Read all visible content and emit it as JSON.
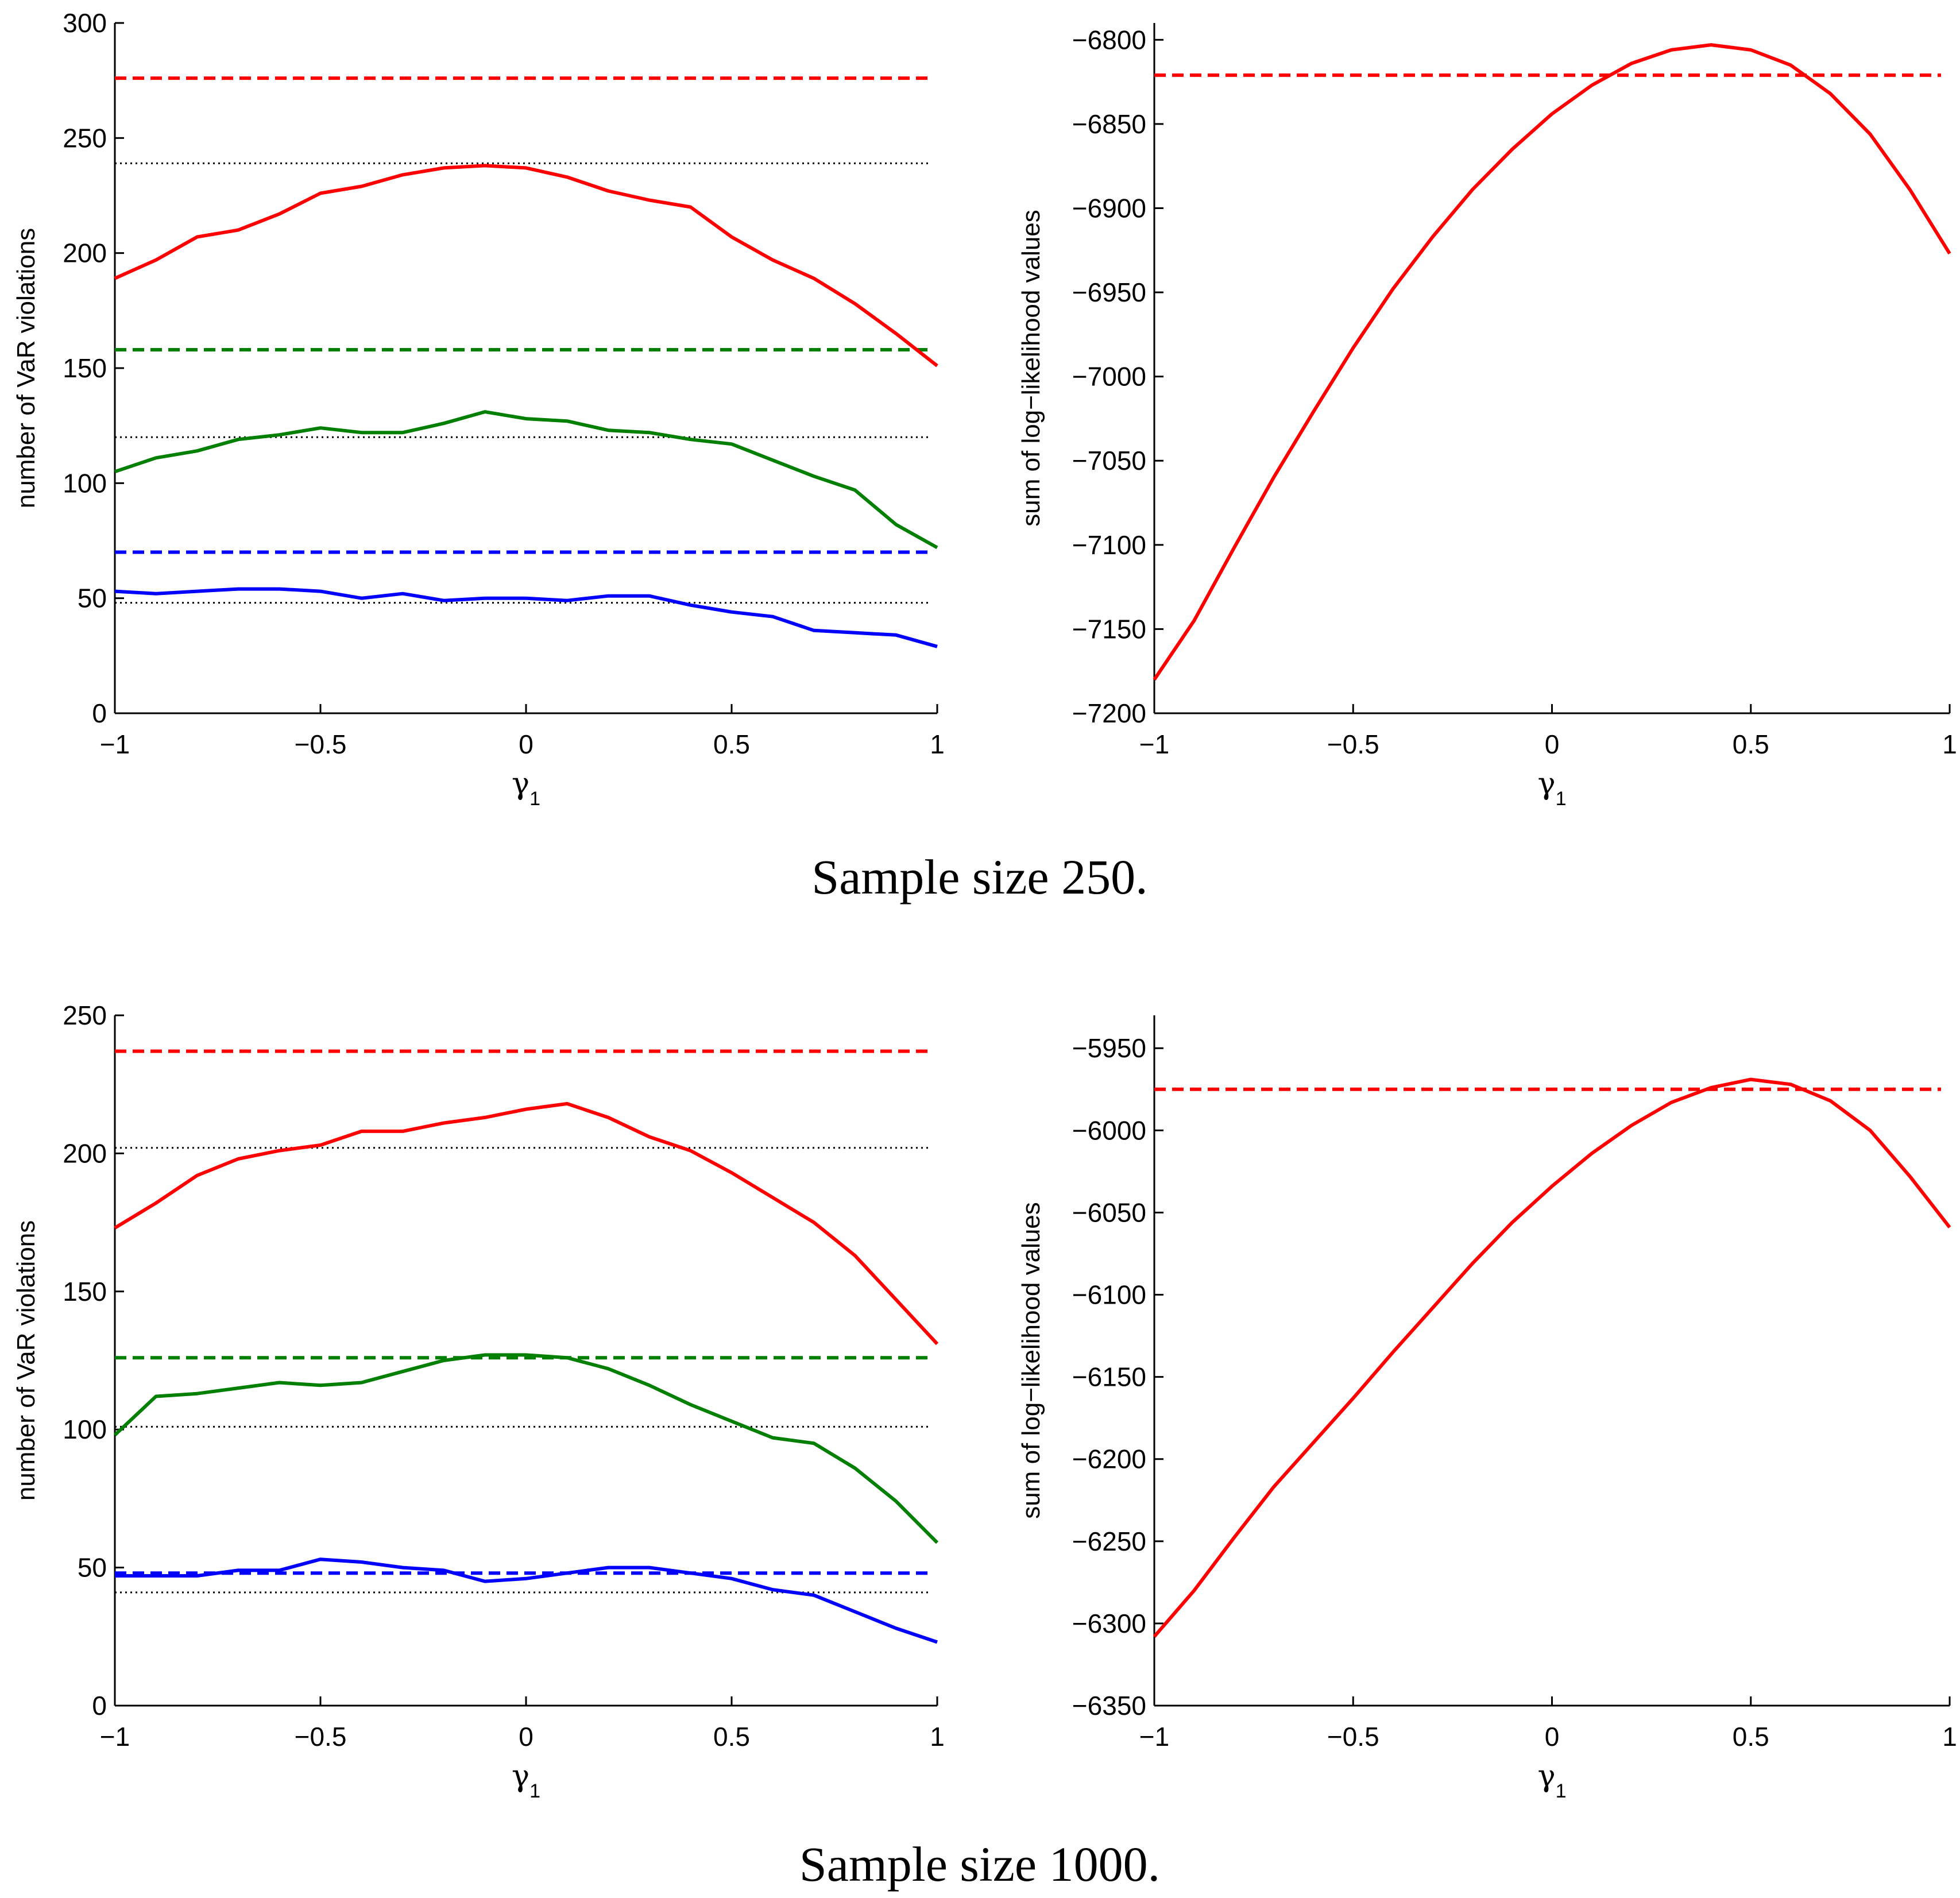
{
  "colors": {
    "red": "#ff0000",
    "green": "#007f00",
    "blue": "#0000ff",
    "ref": "#000000"
  },
  "captions": {
    "top": "Sample size 250.",
    "bottom": "Sample size 1000."
  },
  "chart_data": [
    {
      "type": "line",
      "title": "",
      "xlabel": "γ1",
      "ylabel": "number of VaR violations",
      "xlim": [
        -1,
        1
      ],
      "ylim": [
        0,
        300
      ],
      "xticks": [
        -1,
        -0.5,
        0,
        0.5,
        1
      ],
      "xtick_labels": [
        "−1",
        "−0.5",
        "0",
        "0.5",
        "1"
      ],
      "yticks": [
        0,
        50,
        100,
        150,
        200,
        250,
        300
      ],
      "ytick_labels": [
        "0",
        "50",
        "100",
        "150",
        "200",
        "250",
        "300"
      ],
      "x": [
        -1,
        -0.9,
        -0.8,
        -0.7,
        -0.6,
        -0.5,
        -0.4,
        -0.3,
        -0.2,
        -0.1,
        0,
        0.1,
        0.2,
        0.3,
        0.4,
        0.5,
        0.6,
        0.7,
        0.8,
        0.9,
        1
      ],
      "series": [
        {
          "name": "red",
          "color": "red",
          "values": [
            189,
            197,
            207,
            210,
            217,
            226,
            229,
            234,
            237,
            238,
            237,
            233,
            227,
            223,
            220,
            207,
            197,
            189,
            178,
            165,
            151
          ]
        },
        {
          "name": "green",
          "color": "green",
          "values": [
            105,
            111,
            114,
            119,
            121,
            124,
            122,
            122,
            126,
            131,
            128,
            127,
            123,
            122,
            119,
            117,
            110,
            103,
            97,
            82,
            72
          ]
        },
        {
          "name": "blue",
          "color": "blue",
          "values": [
            53,
            52,
            53,
            54,
            54,
            53,
            50,
            52,
            49,
            50,
            50,
            49,
            51,
            51,
            47,
            44,
            42,
            36,
            35,
            34,
            29
          ]
        }
      ],
      "hlines": [
        {
          "name": "red dashed",
          "y": 276,
          "style": "dashed",
          "color": "red"
        },
        {
          "name": "black dotted",
          "y": 239,
          "style": "dotted",
          "color": "ref"
        },
        {
          "name": "green dashed",
          "y": 158,
          "style": "dashed",
          "color": "green"
        },
        {
          "name": "black dotted",
          "y": 120,
          "style": "dotted",
          "color": "ref"
        },
        {
          "name": "blue dashed",
          "y": 70,
          "style": "dashed",
          "color": "blue"
        },
        {
          "name": "black dotted",
          "y": 48,
          "style": "dotted",
          "color": "ref"
        }
      ]
    },
    {
      "type": "line",
      "title": "",
      "xlabel": "γ1",
      "ylabel": "sum of log−likelihood values",
      "xlim": [
        -1,
        1
      ],
      "ylim": [
        -7200,
        -6790
      ],
      "xticks": [
        -1,
        -0.5,
        0,
        0.5,
        1
      ],
      "xtick_labels": [
        "−1",
        "−0.5",
        "0",
        "0.5",
        "1"
      ],
      "yticks": [
        -7200,
        -7150,
        -7100,
        -7050,
        -7000,
        -6950,
        -6900,
        -6850,
        -6800
      ],
      "ytick_labels": [
        "−7200",
        "−7150",
        "−7100",
        "−7050",
        "−7000",
        "−6950",
        "−6900",
        "−6850",
        "−6800"
      ],
      "x": [
        -1,
        -0.9,
        -0.8,
        -0.7,
        -0.6,
        -0.5,
        -0.4,
        -0.3,
        -0.2,
        -0.1,
        0,
        0.1,
        0.2,
        0.3,
        0.4,
        0.5,
        0.6,
        0.7,
        0.8,
        0.9,
        1
      ],
      "series": [
        {
          "name": "red",
          "color": "red",
          "values": [
            -7180,
            -7145,
            -7102,
            -7060,
            -7021,
            -6983,
            -6948,
            -6917,
            -6889,
            -6865,
            -6844,
            -6827,
            -6814,
            -6806,
            -6803,
            -6806,
            -6815,
            -6832,
            -6856,
            -6889,
            -6927
          ]
        }
      ],
      "hlines": [
        {
          "name": "red dashed",
          "y": -6821,
          "style": "dashed",
          "color": "red"
        }
      ]
    },
    {
      "type": "line",
      "title": "",
      "xlabel": "γ1",
      "ylabel": "number of VaR violations",
      "xlim": [
        -1,
        1
      ],
      "ylim": [
        0,
        250
      ],
      "xticks": [
        -1,
        -0.5,
        0,
        0.5,
        1
      ],
      "xtick_labels": [
        "−1",
        "−0.5",
        "0",
        "0.5",
        "1"
      ],
      "yticks": [
        0,
        50,
        100,
        150,
        200,
        250
      ],
      "ytick_labels": [
        "0",
        "50",
        "100",
        "150",
        "200",
        "250"
      ],
      "x": [
        -1,
        -0.9,
        -0.8,
        -0.7,
        -0.6,
        -0.5,
        -0.4,
        -0.3,
        -0.2,
        -0.1,
        0,
        0.1,
        0.2,
        0.3,
        0.4,
        0.5,
        0.6,
        0.7,
        0.8,
        0.9,
        1
      ],
      "series": [
        {
          "name": "red",
          "color": "red",
          "values": [
            173,
            182,
            192,
            198,
            201,
            203,
            208,
            208,
            211,
            213,
            216,
            218,
            213,
            206,
            201,
            193,
            184,
            175,
            163,
            147,
            131
          ]
        },
        {
          "name": "green",
          "color": "green",
          "values": [
            98,
            112,
            113,
            115,
            117,
            116,
            117,
            121,
            125,
            127,
            127,
            126,
            122,
            116,
            109,
            103,
            97,
            95,
            86,
            74,
            59
          ]
        },
        {
          "name": "blue",
          "color": "blue",
          "values": [
            47,
            47,
            47,
            49,
            49,
            53,
            52,
            50,
            49,
            45,
            46,
            48,
            50,
            50,
            48,
            46,
            42,
            40,
            34,
            28,
            23
          ]
        }
      ],
      "hlines": [
        {
          "name": "red dashed",
          "y": 237,
          "style": "dashed",
          "color": "red"
        },
        {
          "name": "black dotted",
          "y": 202,
          "style": "dotted",
          "color": "ref"
        },
        {
          "name": "green dashed",
          "y": 126,
          "style": "dashed",
          "color": "green"
        },
        {
          "name": "black dotted",
          "y": 101,
          "style": "dotted",
          "color": "ref"
        },
        {
          "name": "blue dashed",
          "y": 48,
          "style": "dashed",
          "color": "blue"
        },
        {
          "name": "black dotted",
          "y": 41,
          "style": "dotted",
          "color": "ref"
        }
      ]
    },
    {
      "type": "line",
      "title": "",
      "xlabel": "γ1",
      "ylabel": "sum of log−likelihood values",
      "xlim": [
        -1,
        1
      ],
      "ylim": [
        -6350,
        -5930
      ],
      "xticks": [
        -1,
        -0.5,
        0,
        0.5,
        1
      ],
      "xtick_labels": [
        "−1",
        "−0.5",
        "0",
        "0.5",
        "1"
      ],
      "yticks": [
        -6350,
        -6300,
        -6250,
        -6200,
        -6150,
        -6100,
        -6050,
        -6000,
        -5950
      ],
      "ytick_labels": [
        "−6350",
        "−6300",
        "−6250",
        "−6200",
        "−6150",
        "−6100",
        "−6050",
        "−6000",
        "−5950"
      ],
      "x": [
        -1,
        -0.9,
        -0.8,
        -0.7,
        -0.6,
        -0.5,
        -0.4,
        -0.3,
        -0.2,
        -0.1,
        0,
        0.1,
        0.2,
        0.3,
        0.4,
        0.5,
        0.6,
        0.7,
        0.8,
        0.9,
        1
      ],
      "series": [
        {
          "name": "red",
          "color": "red",
          "values": [
            -6308,
            -6280,
            -6248,
            -6217,
            -6190,
            -6163,
            -6135,
            -6108,
            -6081,
            -6056,
            -6034,
            -6014,
            -5997,
            -5983,
            -5974,
            -5969,
            -5972,
            -5982,
            -6000,
            -6028,
            -6059
          ]
        }
      ],
      "hlines": [
        {
          "name": "red dashed",
          "y": -5975,
          "style": "dashed",
          "color": "red"
        }
      ]
    }
  ]
}
